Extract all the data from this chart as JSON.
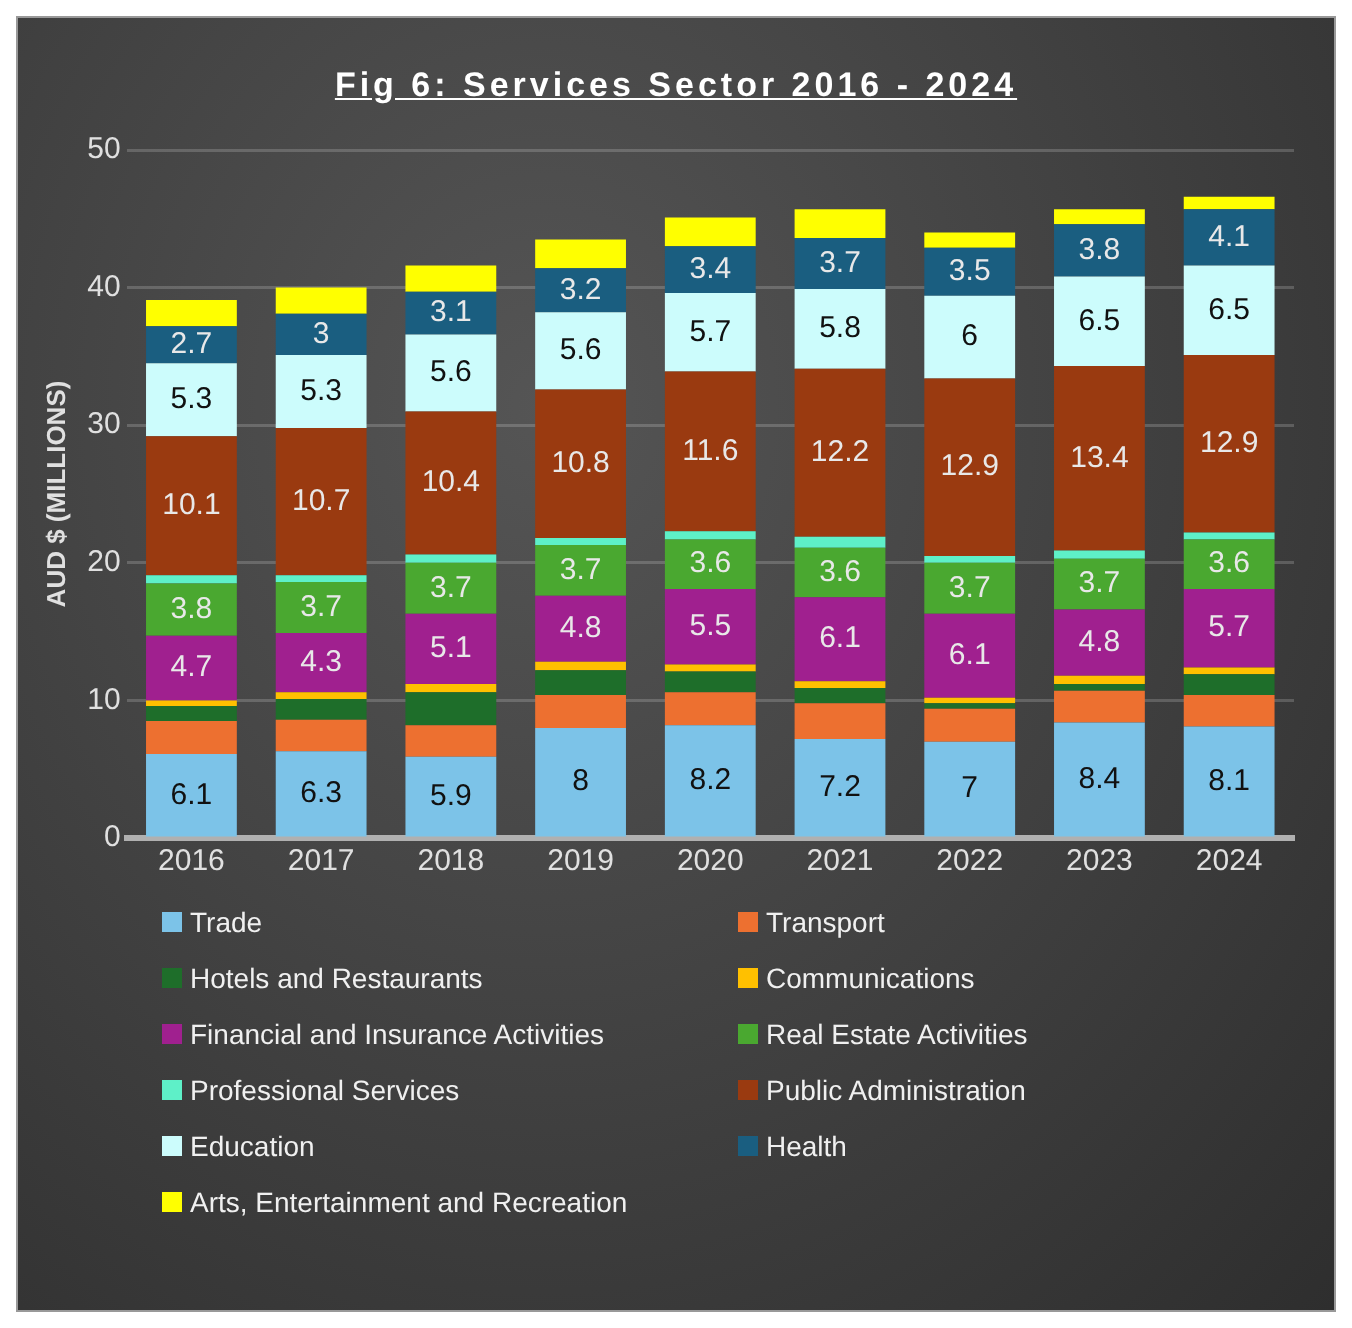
{
  "chart_data": {
    "type": "bar",
    "title": "Fig 6: Services Sector 2016 - 2024",
    "ylabel": "AUD $ (MILLIONS)",
    "stacked": true,
    "grid": "y",
    "legend": "bottom",
    "categories": [
      "2016",
      "2017",
      "2018",
      "2019",
      "2020",
      "2021",
      "2022",
      "2023",
      "2024"
    ],
    "ylim": [
      0,
      50
    ],
    "yticks": [
      0,
      10,
      20,
      30,
      40,
      50
    ],
    "series": [
      {
        "name": "Trade",
        "color": "#7cc3e8",
        "values": [
          6.1,
          6.3,
          5.9,
          8,
          8.2,
          7.2,
          7,
          8.4,
          8.1
        ],
        "value_labels": [
          "6.1",
          "6.3",
          "5.9",
          "8",
          "8.2",
          "7.2",
          "7",
          "8.4",
          "8.1"
        ]
      },
      {
        "name": "Transport",
        "color": "#ed7030",
        "values": [
          2.4,
          2.3,
          2.3,
          2.4,
          2.4,
          2.6,
          2.4,
          2.3,
          2.3
        ]
      },
      {
        "name": "Hotels and Restaurants",
        "color": "#1e6e2a",
        "values": [
          1.1,
          1.5,
          2.4,
          1.8,
          1.5,
          1.1,
          0.4,
          0.5,
          1.5
        ]
      },
      {
        "name": "Communications",
        "color": "#ffc000",
        "values": [
          0.4,
          0.5,
          0.6,
          0.6,
          0.5,
          0.5,
          0.4,
          0.6,
          0.5
        ]
      },
      {
        "name": "Financial and Insurance Activities",
        "color": "#a0208f",
        "values": [
          4.7,
          4.3,
          5.1,
          4.8,
          5.5,
          6.1,
          6.1,
          4.8,
          5.7
        ],
        "value_labels": [
          "4.7",
          "4.3",
          "5.1",
          "4.8",
          "5.5",
          "6.1",
          "6.1",
          "4.8",
          "5.7"
        ]
      },
      {
        "name": "Real Estate Activities",
        "color": "#4aa830",
        "values": [
          3.8,
          3.7,
          3.7,
          3.7,
          3.6,
          3.6,
          3.7,
          3.7,
          3.6
        ],
        "value_labels": [
          "3.8",
          "3.7",
          "3.7",
          "3.7",
          "3.6",
          "3.6",
          "3.7",
          "3.7",
          "3.6"
        ]
      },
      {
        "name": "Professional Services",
        "color": "#5ef0c8",
        "values": [
          0.6,
          0.5,
          0.6,
          0.5,
          0.6,
          0.8,
          0.5,
          0.6,
          0.5
        ]
      },
      {
        "name": "Public Administration",
        "color": "#9a3a10",
        "values": [
          10.1,
          10.7,
          10.4,
          10.8,
          11.6,
          12.2,
          12.9,
          13.4,
          12.9
        ],
        "value_labels": [
          "10.1",
          "10.7",
          "10.4",
          "10.8",
          "11.6",
          "12.2",
          "12.9",
          "13.4",
          "12.9"
        ]
      },
      {
        "name": "Education",
        "color": "#ccfcfc",
        "values": [
          5.3,
          5.3,
          5.6,
          5.6,
          5.7,
          5.8,
          6,
          6.5,
          6.5
        ],
        "value_labels": [
          "5.3",
          "5.3",
          "5.6",
          "5.6",
          "5.7",
          "5.8",
          "6",
          "6.5",
          "6.5"
        ]
      },
      {
        "name": "Health",
        "color": "#1a5e80",
        "values": [
          2.7,
          3,
          3.1,
          3.2,
          3.4,
          3.7,
          3.5,
          3.8,
          4.1
        ],
        "value_labels": [
          "2.7",
          "3",
          "3.1",
          "3.2",
          "3.4",
          "3.7",
          "3.5",
          "3.8",
          "4.1"
        ]
      },
      {
        "name": "Arts, Entertainment and Recreation",
        "color": "#ffff00",
        "values": [
          1.9,
          1.9,
          1.9,
          2.1,
          2.1,
          2.1,
          1.1,
          1.1,
          0.9
        ]
      }
    ]
  }
}
